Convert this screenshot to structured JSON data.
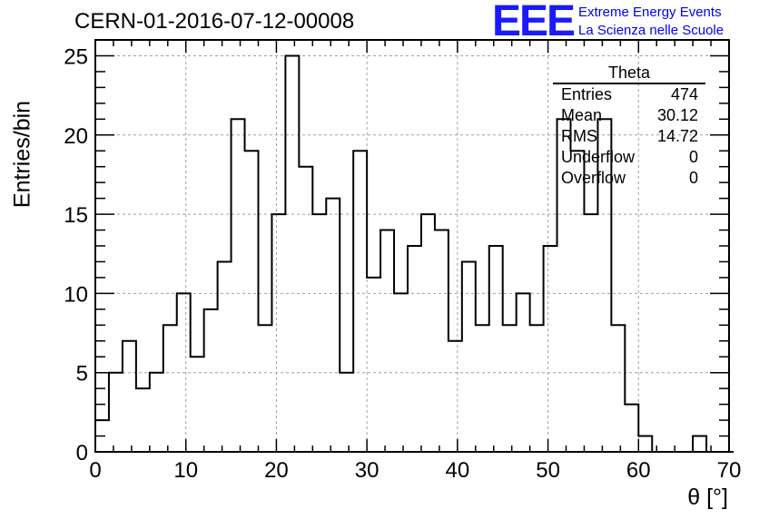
{
  "header": {
    "run_id": "CERN-01-2016-07-12-00008",
    "logo_text": "EEE",
    "logo_line1": "Extreme Energy Events",
    "logo_line2": "La Scienza nelle Scuole"
  },
  "stats": {
    "title": "Theta",
    "rows": [
      {
        "label": "Entries",
        "value": "474"
      },
      {
        "label": "Mean",
        "value": "30.12"
      },
      {
        "label": "RMS",
        "value": "14.72"
      },
      {
        "label": "Underflow",
        "value": "0"
      },
      {
        "label": "Overflow",
        "value": "0"
      }
    ]
  },
  "colors": {
    "logo": "#1a1aff",
    "line": "#000000",
    "grid": "#a0a0a0"
  },
  "chart_data": {
    "type": "histogram",
    "xlabel": "θ [°]",
    "ylabel": "Entries/bin",
    "xlim": [
      0,
      70
    ],
    "ylim": [
      0,
      26
    ],
    "xticks": [
      0,
      10,
      20,
      30,
      40,
      50,
      60,
      70
    ],
    "yticks": [
      0,
      5,
      10,
      15,
      20,
      25
    ],
    "grid": true,
    "bin_width": 1.5,
    "bin_start": 0,
    "values": [
      2,
      5,
      7,
      4,
      5,
      8,
      10,
      6,
      9,
      12,
      21,
      19,
      8,
      15,
      25,
      18,
      15,
      16,
      5,
      19,
      11,
      14,
      10,
      13,
      15,
      14,
      7,
      12,
      8,
      13,
      8,
      10,
      8,
      13,
      21,
      19,
      15,
      21,
      8,
      3,
      1,
      0,
      0,
      0,
      1,
      0,
      0
    ]
  }
}
